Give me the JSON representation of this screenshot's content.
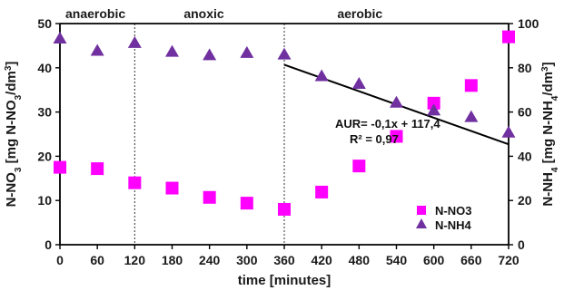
{
  "chart_data": {
    "type": "scatter",
    "xlabel": "time [minutes]",
    "x_ticks": [
      "0",
      "60",
      "120",
      "180",
      "240",
      "300",
      "360",
      "420",
      "480",
      "540",
      "600",
      "660",
      "720"
    ],
    "xlim": [
      0,
      720
    ],
    "ylabel_left_parts": [
      "N-NO",
      "3",
      " [mg N-NO",
      "3",
      "/dm",
      "3",
      "]"
    ],
    "ylabel_right_parts": [
      "N-NH",
      "4",
      " [mg N-NH",
      "4",
      "/dm",
      "3",
      "]"
    ],
    "y_left_ticks": [
      "0",
      "10",
      "20",
      "30",
      "40",
      "50"
    ],
    "y_left_lim": [
      0,
      50
    ],
    "y_right_ticks": [
      "0",
      "20",
      "40",
      "60",
      "80",
      "100"
    ],
    "y_right_lim": [
      0,
      100
    ],
    "phases": [
      {
        "label": "anaerobic",
        "from": 0,
        "to": 120
      },
      {
        "label": "anoxic",
        "from": 120,
        "to": 360
      },
      {
        "label": "aerobic",
        "from": 360,
        "to": 720
      }
    ],
    "series": [
      {
        "name": "N-NO3",
        "axis": "left",
        "marker": "square",
        "color": "#ff00ff",
        "x": [
          0,
          60,
          120,
          180,
          240,
          300,
          360,
          420,
          480,
          540,
          600,
          660,
          720
        ],
        "y": [
          17.5,
          17.2,
          14.0,
          12.8,
          10.7,
          9.4,
          8.0,
          11.9,
          17.8,
          24.5,
          32.0,
          36.0,
          47.0
        ]
      },
      {
        "name": "N-NH4",
        "axis": "right",
        "marker": "triangle",
        "color": "#7030a0",
        "x": [
          0,
          60,
          120,
          180,
          240,
          300,
          360,
          420,
          480,
          540,
          600,
          660,
          720
        ],
        "y": [
          93.0,
          87.5,
          91.0,
          87.0,
          85.5,
          86.5,
          85.8,
          76.0,
          72.5,
          64.0,
          60.5,
          57.5,
          50.5
        ]
      }
    ],
    "trendline": {
      "axis": "right",
      "slope": -0.1,
      "intercept": 117.4,
      "from": 360,
      "to": 720,
      "color": "#000000"
    },
    "annotation": {
      "equation": "AUR= -0,1x + 117,4",
      "r2": "R² = 0,97"
    },
    "legend": {
      "position": "bottom-right",
      "items": [
        "N-NO3",
        "N-NH4"
      ]
    },
    "grid": false
  }
}
